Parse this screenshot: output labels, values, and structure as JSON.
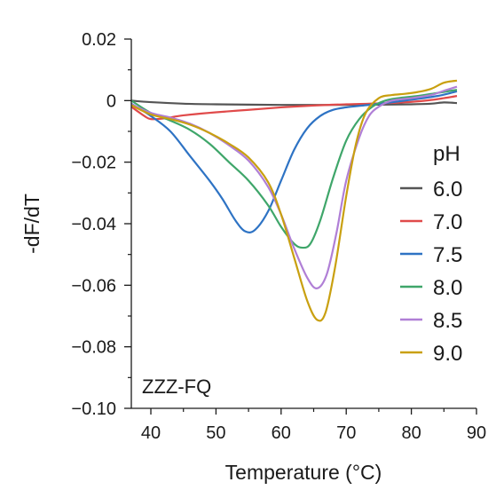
{
  "chart_data": {
    "type": "line",
    "title": "",
    "xlabel": "Temperature (°C)",
    "ylabel": "-dF/dT",
    "xlim": [
      37,
      90
    ],
    "ylim": [
      -0.1,
      0.02
    ],
    "xticks": [
      40,
      50,
      60,
      70,
      80,
      90
    ],
    "xtick_labels": [
      "40",
      "50",
      "60",
      "70",
      "80",
      "90"
    ],
    "yticks": [
      0.02,
      0,
      -0.02,
      -0.04,
      -0.06,
      -0.08,
      -0.1
    ],
    "ytick_labels": [
      "0.02",
      "0",
      "−0.02",
      "−0.04",
      "−0.06",
      "−0.08",
      "−0.10"
    ],
    "grid": false,
    "legend": {
      "title": "pH",
      "placement": "right"
    },
    "annotation": "ZZZ-FQ",
    "series": [
      {
        "name": "6.0",
        "color": "#555555",
        "points": [
          [
            37,
            0
          ],
          [
            40,
            -0.0005
          ],
          [
            45,
            -0.001
          ],
          [
            50,
            -0.0012
          ],
          [
            55,
            -0.0013
          ],
          [
            60,
            -0.0014
          ],
          [
            65,
            -0.0014
          ],
          [
            70,
            -0.0014
          ],
          [
            75,
            -0.0013
          ],
          [
            80,
            -0.0012
          ],
          [
            83,
            -0.001
          ],
          [
            85,
            -0.0006
          ],
          [
            87,
            -0.0008
          ]
        ]
      },
      {
        "name": "7.0",
        "color": "#e04a4a",
        "points": [
          [
            37,
            -0.002
          ],
          [
            39,
            -0.005
          ],
          [
            40,
            -0.006
          ],
          [
            42,
            -0.0058
          ],
          [
            45,
            -0.0048
          ],
          [
            50,
            -0.0038
          ],
          [
            55,
            -0.003
          ],
          [
            60,
            -0.0022
          ],
          [
            65,
            -0.0016
          ],
          [
            70,
            -0.0012
          ],
          [
            75,
            -0.0009
          ],
          [
            80,
            -0.0004
          ],
          [
            83,
            0.0002
          ],
          [
            85,
            0.0008
          ],
          [
            87,
            0.0015
          ]
        ]
      },
      {
        "name": "7.5",
        "color": "#2e73c4",
        "points": [
          [
            37,
            -0.001
          ],
          [
            40,
            -0.005
          ],
          [
            43,
            -0.01
          ],
          [
            46,
            -0.018
          ],
          [
            49,
            -0.026
          ],
          [
            51,
            -0.032
          ],
          [
            53,
            -0.039
          ],
          [
            54.5,
            -0.0425
          ],
          [
            56,
            -0.042
          ],
          [
            58,
            -0.036
          ],
          [
            60,
            -0.026
          ],
          [
            62,
            -0.016
          ],
          [
            64,
            -0.009
          ],
          [
            66,
            -0.005
          ],
          [
            68,
            -0.003
          ],
          [
            70,
            -0.0022
          ],
          [
            73,
            -0.0015
          ],
          [
            76,
            -0.0008
          ],
          [
            80,
            0.0003
          ],
          [
            84,
            0.0015
          ],
          [
            87,
            0.003
          ]
        ]
      },
      {
        "name": "8.0",
        "color": "#3fa66a",
        "points": [
          [
            37,
            0
          ],
          [
            40,
            -0.004
          ],
          [
            43,
            -0.0065
          ],
          [
            46,
            -0.0095
          ],
          [
            49,
            -0.014
          ],
          [
            52,
            -0.02
          ],
          [
            55,
            -0.026
          ],
          [
            58,
            -0.034
          ],
          [
            60,
            -0.041
          ],
          [
            62,
            -0.0465
          ],
          [
            63.3,
            -0.0478
          ],
          [
            64.5,
            -0.0465
          ],
          [
            66,
            -0.039
          ],
          [
            68,
            -0.025
          ],
          [
            70,
            -0.013
          ],
          [
            72,
            -0.006
          ],
          [
            74,
            -0.002
          ],
          [
            76,
            0
          ],
          [
            78,
            0.0008
          ],
          [
            81,
            0.0015
          ],
          [
            84,
            0.0025
          ],
          [
            87,
            0.0035
          ]
        ]
      },
      {
        "name": "8.5",
        "color": "#b07fd6",
        "points": [
          [
            37,
            -0.0012
          ],
          [
            40,
            -0.004
          ],
          [
            43,
            -0.0055
          ],
          [
            46,
            -0.0075
          ],
          [
            49,
            -0.0105
          ],
          [
            52,
            -0.0145
          ],
          [
            55,
            -0.0195
          ],
          [
            58,
            -0.028
          ],
          [
            60,
            -0.037
          ],
          [
            62,
            -0.048
          ],
          [
            64,
            -0.0575
          ],
          [
            65.5,
            -0.061
          ],
          [
            67,
            -0.0565
          ],
          [
            68.5,
            -0.043
          ],
          [
            70,
            -0.026
          ],
          [
            72,
            -0.012
          ],
          [
            73.5,
            -0.005
          ],
          [
            75,
            -0.002
          ],
          [
            77,
            0
          ],
          [
            80,
            0.0008
          ],
          [
            83,
            0.0018
          ],
          [
            85,
            0.0032
          ],
          [
            87,
            0.0045
          ]
        ]
      },
      {
        "name": "9.0",
        "color": "#c9a010",
        "points": [
          [
            37,
            -0.0015
          ],
          [
            40,
            -0.0045
          ],
          [
            43,
            -0.006
          ],
          [
            46,
            -0.0078
          ],
          [
            49,
            -0.0105
          ],
          [
            52,
            -0.014
          ],
          [
            55,
            -0.0185
          ],
          [
            58,
            -0.0265
          ],
          [
            60,
            -0.037
          ],
          [
            62,
            -0.051
          ],
          [
            64,
            -0.065
          ],
          [
            65.5,
            -0.0712
          ],
          [
            66.8,
            -0.069
          ],
          [
            68.3,
            -0.054
          ],
          [
            70,
            -0.031
          ],
          [
            71.5,
            -0.014
          ],
          [
            73,
            -0.004
          ],
          [
            75,
            0.0008
          ],
          [
            77,
            0.0018
          ],
          [
            79,
            0.0022
          ],
          [
            81,
            0.0028
          ],
          [
            83,
            0.0038
          ],
          [
            85,
            0.0058
          ],
          [
            87,
            0.0065
          ]
        ]
      }
    ]
  }
}
